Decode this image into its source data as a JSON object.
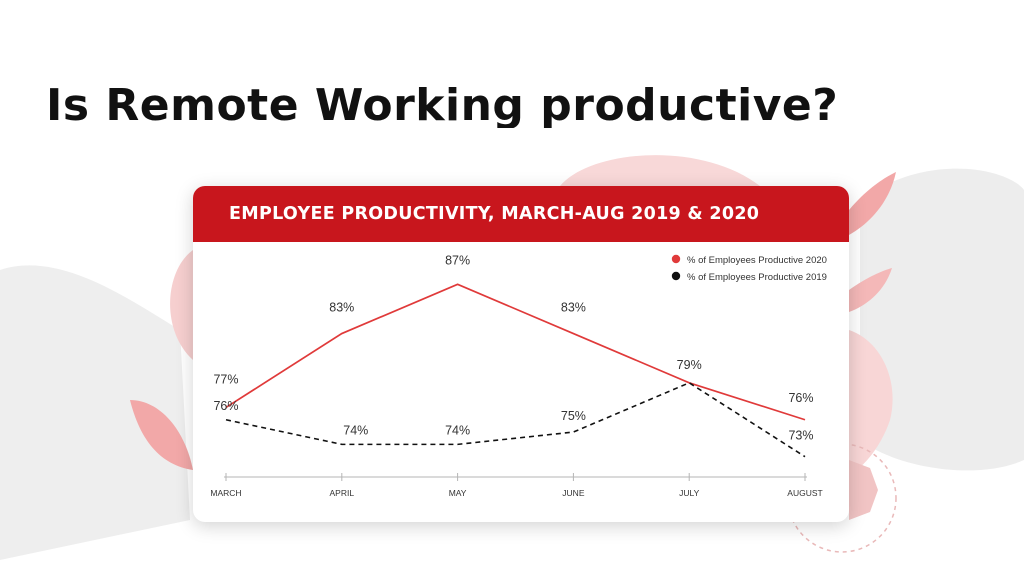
{
  "slide": {
    "title": "Is Remote Working productive?"
  },
  "colors": {
    "accent": "#c8161d",
    "series_2020": "#e03a3a",
    "series_2019": "#111111",
    "blob": "#f8d6d6",
    "gray_blob": "#efefef"
  },
  "chart_data": {
    "type": "line",
    "title": "EMPLOYEE PRODUCTIVITY, MARCH-AUG 2019 & 2020",
    "categories": [
      "MARCH",
      "APRIL",
      "MAY",
      "JUNE",
      "JULY",
      "AUGUST"
    ],
    "series": [
      {
        "name": "% of Employees Productive 2020",
        "values": [
          77,
          83,
          87,
          83,
          79,
          76
        ],
        "labels": [
          "77%",
          "83%",
          "87%",
          "83%",
          "79%",
          "76%"
        ],
        "style": "solid",
        "color": "#e03a3a"
      },
      {
        "name": "% of Employees Productive 2019",
        "values": [
          76,
          74,
          74,
          75,
          79,
          73
        ],
        "labels": [
          "76%",
          "74%",
          "74%",
          "75%",
          "",
          "73%"
        ],
        "style": "dashed",
        "color": "#111111"
      }
    ],
    "ylim": [
      72,
      88
    ],
    "grid": false,
    "legend": "top-right"
  }
}
